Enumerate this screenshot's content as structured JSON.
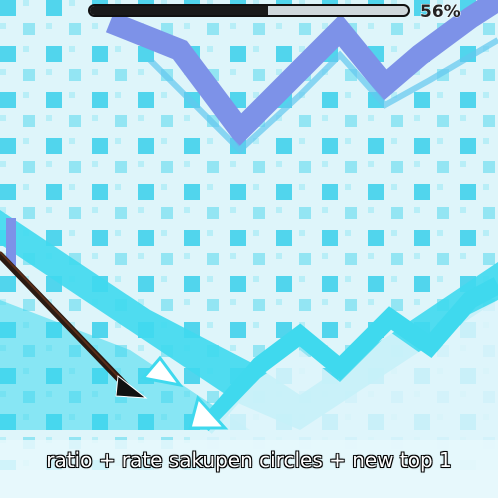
{
  "progress": {
    "percent_label": "56%",
    "fraction": 0.56
  },
  "caption": {
    "text": "ratio + rate sakupen circles + new top 1"
  },
  "colors": {
    "cyan": "#3fd9ee",
    "light": "#e6f8fc",
    "purple_blue": "#7d92e8",
    "pattern": "#49d3ec",
    "wave": "#111111"
  }
}
